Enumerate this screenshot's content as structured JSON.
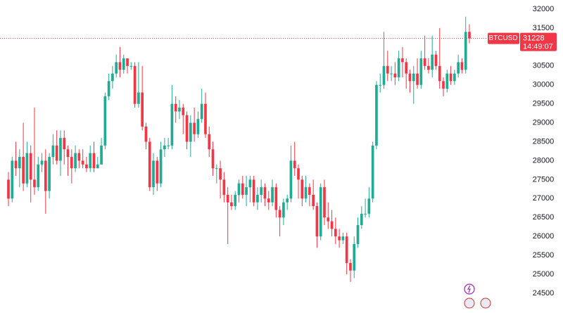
{
  "chart_data": {
    "type": "candlestick",
    "symbol": "BTCUSD",
    "last_price": 31228,
    "last_time": "14:49:07",
    "up_color": "#22ab94",
    "down_color": "#f23645",
    "grid": false,
    "ylim": [
      23980,
      32241
    ],
    "yticks": [
      24500,
      25000,
      25500,
      26000,
      26500,
      27000,
      27500,
      28000,
      28500,
      29000,
      29500,
      30000,
      30500,
      31000,
      31500,
      32000
    ],
    "open": [
      27500,
      27000,
      28000,
      27800,
      28100,
      27400,
      28200,
      27500,
      27300,
      27900,
      28000,
      27200,
      28100,
      28400,
      28000,
      28600,
      28300,
      28100,
      27800,
      28200,
      28000,
      27900,
      27800,
      28200,
      27800,
      27900,
      28400,
      29700,
      30100,
      30300,
      30600,
      30400,
      30700,
      30500,
      30500,
      29500,
      29800,
      28900,
      28500,
      27300,
      28000,
      27400,
      28300,
      28400,
      28400,
      29500,
      29300,
      29400,
      29200,
      28500,
      29000,
      28700,
      29100,
      29500,
      28700,
      28300,
      27800,
      27800,
      27500,
      27100,
      26900,
      26800,
      27100,
      27400,
      27100,
      27300,
      27500,
      26900,
      27100,
      27300,
      27000,
      26900,
      27300,
      26700,
      26500,
      26900,
      27000,
      28000,
      27800,
      27500,
      27000,
      27300,
      27100,
      26800,
      26000,
      27300,
      26500,
      26400,
      26200,
      26000,
      25900,
      26000,
      25300,
      25100,
      25800,
      26300,
      26600,
      26600,
      27000,
      28400,
      30000,
      30000,
      30500,
      30300,
      30300,
      30200,
      30700,
      30600,
      30300,
      30100,
      30300,
      30000,
      30700,
      30500,
      30400,
      30800,
      30500,
      30100,
      29900,
      30300,
      30100,
      30300,
      30600,
      30400,
      31400
    ],
    "high": [
      27700,
      28100,
      28500,
      28300,
      29000,
      28500,
      28400,
      29400,
      28100,
      28200,
      28300,
      28200,
      28700,
      28800,
      28800,
      28800,
      28400,
      28300,
      28400,
      28300,
      28300,
      28100,
      28400,
      28500,
      28100,
      28600,
      29800,
      30300,
      30500,
      30800,
      31000,
      30800,
      30700,
      30600,
      30600,
      30600,
      30500,
      29000,
      28600,
      28200,
      28100,
      28500,
      28600,
      28600,
      30000,
      29700,
      29600,
      29500,
      29300,
      29200,
      29400,
      29300,
      29900,
      29800,
      28900,
      28500,
      27900,
      28000,
      27700,
      27300,
      27100,
      27200,
      27500,
      27600,
      27600,
      27600,
      27600,
      27300,
      27500,
      27400,
      27200,
      27500,
      27400,
      26800,
      27000,
      27100,
      28400,
      28500,
      27900,
      27600,
      27600,
      27400,
      27500,
      26900,
      27400,
      27500,
      26900,
      26700,
      26500,
      26200,
      26100,
      26100,
      25400,
      26000,
      26500,
      26800,
      27000,
      27300,
      28500,
      30100,
      30300,
      31400,
      30900,
      30500,
      30600,
      30900,
      31000,
      30700,
      30400,
      30500,
      30700,
      30900,
      31300,
      30700,
      31300,
      30900,
      31500,
      30200,
      30400,
      30500,
      30400,
      30800,
      30700,
      31800,
      31600
    ],
    "low": [
      26800,
      26900,
      27600,
      27300,
      27200,
      27300,
      26900,
      27100,
      27200,
      27700,
      26600,
      27000,
      27900,
      27900,
      27600,
      27900,
      27600,
      27400,
      27700,
      27800,
      27800,
      27700,
      27700,
      27700,
      27800,
      27900,
      28300,
      29600,
      29900,
      30200,
      30200,
      30300,
      30300,
      30400,
      29400,
      29400,
      28800,
      28300,
      27200,
      27100,
      27200,
      27300,
      28100,
      28300,
      28300,
      29000,
      29100,
      28700,
      28300,
      28100,
      28500,
      28600,
      29000,
      28600,
      28100,
      27600,
      27400,
      27000,
      26900,
      25800,
      26700,
      26700,
      26900,
      27000,
      26800,
      26900,
      26800,
      26700,
      26900,
      26800,
      26700,
      26800,
      26500,
      26000,
      26300,
      26700,
      26900,
      27600,
      27000,
      26800,
      26900,
      26800,
      26700,
      25700,
      25900,
      26300,
      26200,
      26000,
      25800,
      25700,
      25800,
      25000,
      24800,
      24900,
      25700,
      26200,
      26500,
      26500,
      26900,
      28300,
      29800,
      29900,
      30100,
      30100,
      30000,
      30100,
      30200,
      29900,
      29800,
      29500,
      29900,
      29900,
      30400,
      30300,
      30200,
      30400,
      29900,
      29700,
      29800,
      30000,
      30000,
      30200,
      30300,
      30300,
      31100
    ],
    "close": [
      27000,
      28000,
      27800,
      28100,
      27400,
      28200,
      27500,
      27300,
      27900,
      28000,
      27200,
      28100,
      28400,
      28000,
      28600,
      28300,
      28100,
      27800,
      28200,
      28000,
      27900,
      27800,
      28200,
      27800,
      27900,
      28400,
      29700,
      30100,
      30300,
      30600,
      30400,
      30700,
      30500,
      30500,
      29500,
      29800,
      28900,
      28500,
      27300,
      28000,
      27400,
      28300,
      28400,
      28400,
      29500,
      29300,
      29400,
      29200,
      28500,
      29000,
      28700,
      29100,
      29500,
      28700,
      28300,
      27800,
      27800,
      27500,
      27100,
      26900,
      26800,
      27100,
      27400,
      27100,
      27300,
      27500,
      26900,
      27100,
      27300,
      27000,
      26900,
      27300,
      26700,
      26500,
      26900,
      27000,
      28000,
      27800,
      27500,
      27000,
      27300,
      27100,
      26800,
      26000,
      27300,
      26500,
      26400,
      26200,
      26000,
      25900,
      26000,
      25300,
      25100,
      25800,
      26300,
      26600,
      26600,
      27000,
      28400,
      30000,
      30000,
      30500,
      30300,
      30300,
      30200,
      30700,
      30600,
      30300,
      30100,
      30300,
      30000,
      30700,
      30500,
      30400,
      30800,
      30500,
      30100,
      29900,
      30300,
      30100,
      30300,
      30600,
      30400,
      31400,
      31228
    ]
  }
}
